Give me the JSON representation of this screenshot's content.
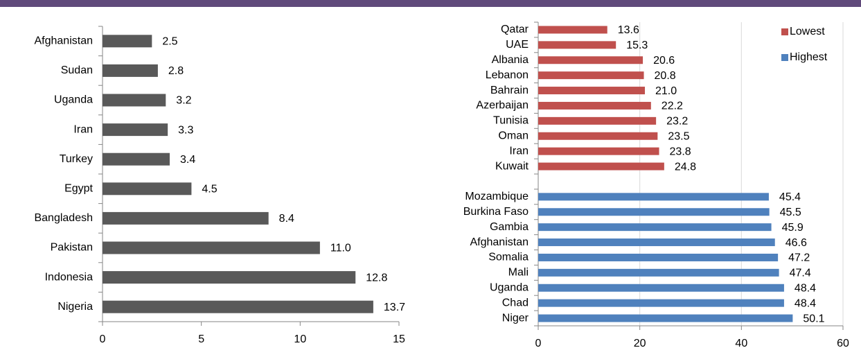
{
  "chart_data": [
    {
      "type": "bar",
      "orientation": "horizontal",
      "categories": [
        "Afghanistan",
        "Sudan",
        "Uganda",
        "Iran",
        "Turkey",
        "Egypt",
        "Bangladesh",
        "Pakistan",
        "Indonesia",
        "Nigeria"
      ],
      "values": [
        2.5,
        2.8,
        3.2,
        3.3,
        3.4,
        4.5,
        8.4,
        11.0,
        12.8,
        13.7
      ],
      "value_labels": [
        "2.5",
        "2.8",
        "3.2",
        "3.3",
        "3.4",
        "4.5",
        "8.4",
        "11.0",
        "12.8",
        "13.7"
      ],
      "color": "#595959",
      "xlim": [
        0,
        15
      ],
      "xticks": [
        0,
        5,
        10,
        15
      ],
      "grid": false
    },
    {
      "type": "bar",
      "orientation": "horizontal",
      "categories": [
        "Qatar",
        "UAE",
        "Albania",
        "Lebanon",
        "Bahrain",
        "Azerbaijan",
        "Tunisia",
        "Oman",
        "Iran",
        "Kuwait",
        null,
        "Mozambique",
        "Burkina Faso",
        "Gambia",
        "Afghanistan",
        "Somalia",
        "Mali",
        "Uganda",
        "Chad",
        "Niger"
      ],
      "series": [
        {
          "name": "Lowest",
          "color": "#c0504d",
          "values": [
            13.6,
            15.3,
            20.6,
            20.8,
            21.0,
            22.2,
            23.2,
            23.5,
            23.8,
            24.8,
            null,
            null,
            null,
            null,
            null,
            null,
            null,
            null,
            null,
            null
          ],
          "value_labels": [
            "13.6",
            "15.3",
            "20.6",
            "20.8",
            "21.0",
            "22.2",
            "23.2",
            "23.5",
            "23.8",
            "24.8",
            null,
            null,
            null,
            null,
            null,
            null,
            null,
            null,
            null,
            null
          ]
        },
        {
          "name": "Highest",
          "color": "#4f81bd",
          "values": [
            null,
            null,
            null,
            null,
            null,
            null,
            null,
            null,
            null,
            null,
            null,
            45.4,
            45.5,
            45.9,
            46.6,
            47.2,
            47.4,
            48.4,
            48.4,
            50.1
          ],
          "value_labels": [
            null,
            null,
            null,
            null,
            null,
            null,
            null,
            null,
            null,
            null,
            null,
            "45.4",
            "45.5",
            "45.9",
            "46.6",
            "47.2",
            "47.4",
            "48.4",
            "48.4",
            "50.1"
          ]
        }
      ],
      "xlim": [
        0,
        60
      ],
      "xticks": [
        0,
        20,
        40,
        60
      ],
      "grid": true,
      "legend": "top-right"
    }
  ]
}
